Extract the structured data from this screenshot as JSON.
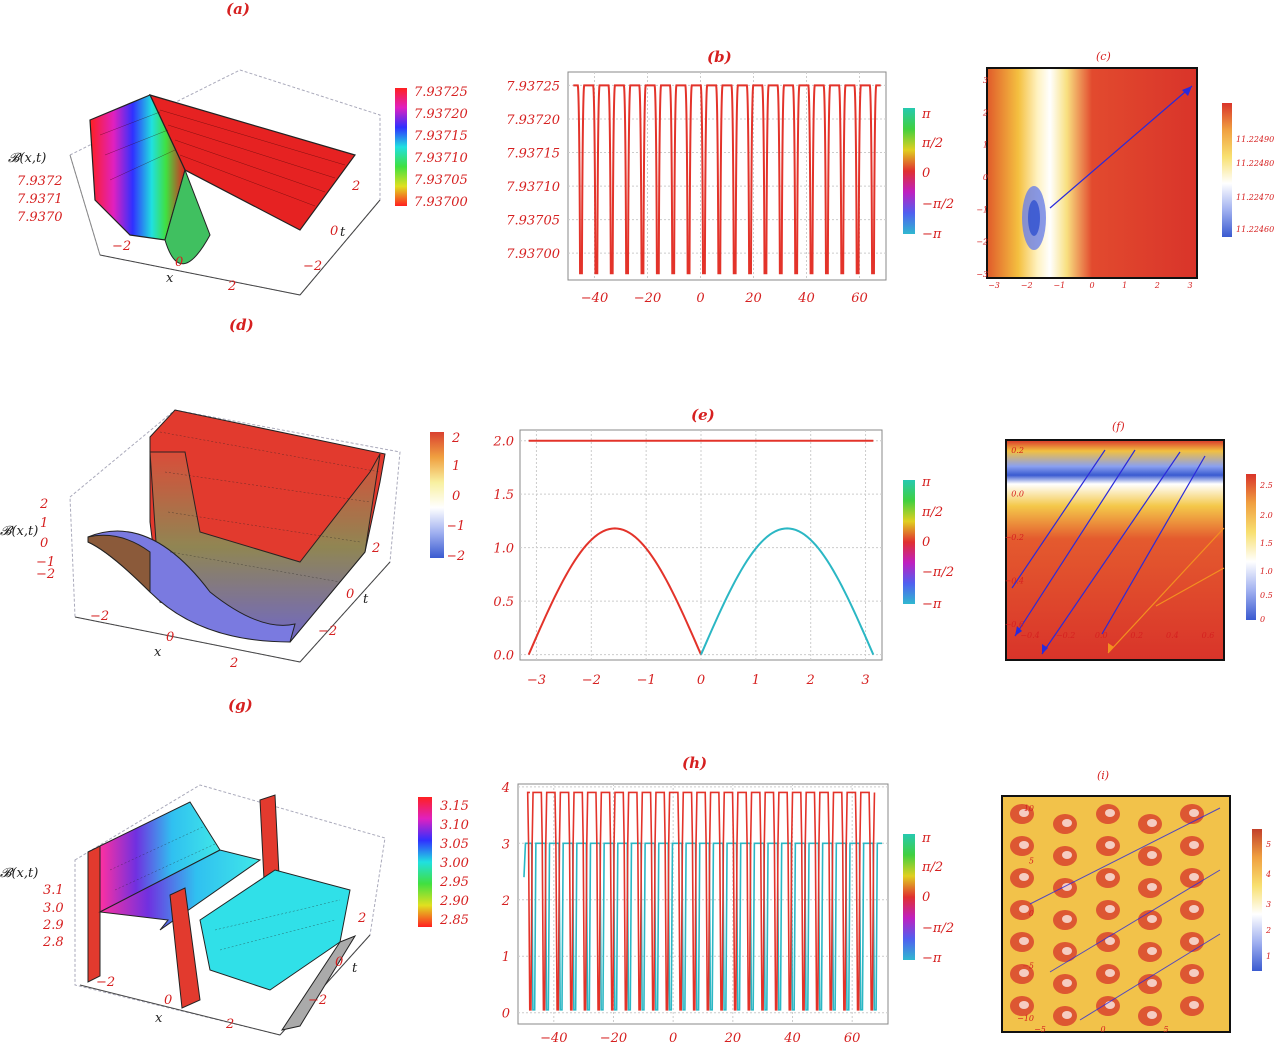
{
  "labels": {
    "a": "(a)",
    "b": "(b)",
    "c": "(c)",
    "d": "(d)",
    "e": "(e)",
    "f": "(f)",
    "g": "(g)",
    "h": "(h)",
    "i": "(i)"
  },
  "surface_axes": {
    "x": "x",
    "t": "t",
    "z": "𝓑(x,t)"
  },
  "colors": {
    "red": "#e3332a",
    "cyan": "#2bb7c4",
    "blue": "#2a2adb",
    "gold": "#f2c94c",
    "text_red": "#d62020"
  },
  "phase_legend": [
    "π",
    "π/2",
    "0",
    "−π/2",
    "−π"
  ],
  "chart_data": [
    {
      "id": "a",
      "type": "surface",
      "xticks": [
        "−2",
        "0",
        "2"
      ],
      "tticks": [
        "2",
        "0",
        "−2"
      ],
      "zticks": [
        "7.9372",
        "7.9371",
        "7.9370"
      ],
      "colorbar": [
        "7.93725",
        "7.93720",
        "7.93715",
        "7.93710",
        "7.93705",
        "7.93700"
      ]
    },
    {
      "id": "b",
      "type": "line",
      "xticks": [
        "−40",
        "−20",
        "0",
        "20",
        "40",
        "60"
      ],
      "yticks": [
        "7.93725",
        "7.93720",
        "7.93715",
        "7.93710",
        "7.93705",
        "7.93700"
      ],
      "xlim": [
        -50,
        70
      ],
      "ylim": [
        7.93696,
        7.93727
      ],
      "series": [
        {
          "color": "red",
          "high": 7.93725,
          "low": 7.93697,
          "dips": 20
        }
      ]
    },
    {
      "id": "c",
      "type": "heatmap",
      "xticks": [
        "−3",
        "−2",
        "−1",
        "0",
        "1",
        "2",
        "3"
      ],
      "yticks": [
        "3",
        "2",
        "1",
        "0",
        "−1",
        "−2",
        "−3"
      ],
      "colorbar": [
        "11.22490",
        "11.22480",
        "11.22470",
        "11.22460"
      ]
    },
    {
      "id": "d",
      "type": "surface",
      "xticks": [
        "−2",
        "0",
        "2"
      ],
      "tticks": [
        "2",
        "0",
        "−2"
      ],
      "zticks": [
        "2",
        "1",
        "0",
        "−1",
        "−2"
      ],
      "colorbar": [
        "2",
        "1",
        "0",
        "−1",
        "−2"
      ]
    },
    {
      "id": "e",
      "type": "line",
      "xticks": [
        "−3",
        "−2",
        "−1",
        "0",
        "1",
        "2",
        "3"
      ],
      "yticks": [
        "2.0",
        "1.5",
        "1.0",
        "0.5",
        "0.0"
      ],
      "xlim": [
        -3.3,
        3.3
      ],
      "ylim": [
        -0.05,
        2.1
      ],
      "series": [
        {
          "color": "red",
          "kind": "constant",
          "value": 2.0
        },
        {
          "color": "red",
          "kind": "arch",
          "x": [
            -3.14159,
            0
          ],
          "peak": 1.18
        },
        {
          "color": "cyan",
          "kind": "arch",
          "x": [
            0,
            3.14159
          ],
          "peak": 1.18
        }
      ]
    },
    {
      "id": "f",
      "type": "heatmap",
      "xticks": [
        "−0.4",
        "−0.2",
        "0.0",
        "0.2",
        "0.4",
        "0.6"
      ],
      "yticks": [
        "0.2",
        "0.0",
        "−0.2",
        "−0.4",
        "−0.6"
      ],
      "colorbar": [
        "2.5",
        "2.0",
        "1.5",
        "1.0",
        "0.5",
        "0"
      ]
    },
    {
      "id": "g",
      "type": "surface",
      "xticks": [
        "−2",
        "0",
        "2"
      ],
      "tticks": [
        "2",
        "0",
        "−2"
      ],
      "zticks": [
        "3.1",
        "3.0",
        "2.9",
        "2.8"
      ],
      "colorbar": [
        "3.15",
        "3.10",
        "3.05",
        "3.00",
        "2.95",
        "2.90",
        "2.85"
      ]
    },
    {
      "id": "h",
      "type": "line",
      "xticks": [
        "−40",
        "−20",
        "0",
        "20",
        "40",
        "60"
      ],
      "yticks": [
        "4",
        "3",
        "2",
        "1",
        "0"
      ],
      "xlim": [
        -52,
        72
      ],
      "ylim": [
        -0.2,
        4.05
      ],
      "series": [
        {
          "color": "red",
          "base": 3.0,
          "spike": 3.9,
          "low": 0.05
        },
        {
          "color": "cyan",
          "base": 3.0,
          "low": 0.05
        }
      ]
    },
    {
      "id": "i",
      "type": "heatmap",
      "xticks": [
        "−5",
        "0",
        "5"
      ],
      "yticks": [
        "10",
        "5",
        "0",
        "−5",
        "−10"
      ],
      "colorbar": [
        "5",
        "4",
        "3",
        "2",
        "1"
      ]
    }
  ]
}
